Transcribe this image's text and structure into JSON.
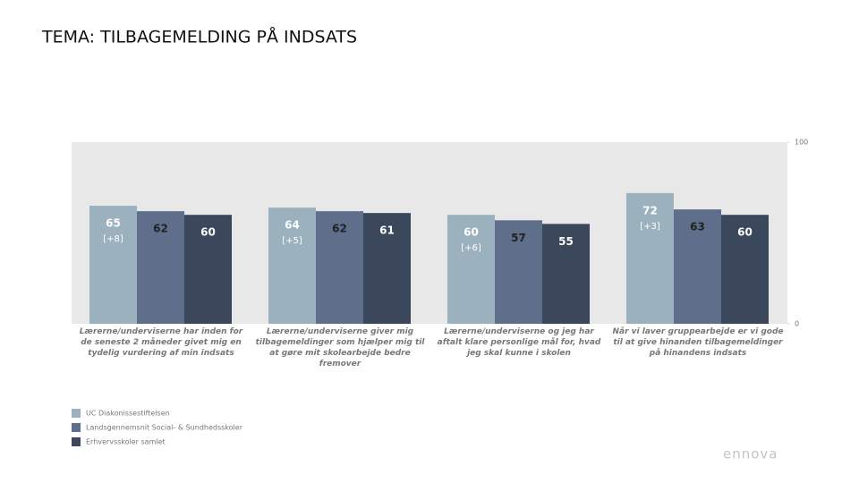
{
  "chart_data": {
    "type": "bar",
    "title": "TEMA: TILBAGEMELDING PÅ INDSATS",
    "categories": [
      "Lærerne/underviserne har inden for de seneste 2 måneder givet mig en tydelig vurdering af min indsats",
      "Lærerne/underviserne giver mig tilbagemeldinger som hjælper mig til at gøre mit skolearbejde bedre fremover",
      "Lærerne/underviserne og jeg har aftalt klare personlige mål for, hvad jeg skal kunne i skolen",
      "Når vi laver gruppearbejde er vi gode til at give hinanden tilbagemeldinger på hinandens indsats"
    ],
    "series": [
      {
        "name": "UC Diakonissestiftelsen",
        "color": "#9bb1bd",
        "values": [
          65,
          64,
          60,
          72
        ],
        "change_labels": [
          "[+8]",
          "[+5]",
          "[+6]",
          "[+3]"
        ]
      },
      {
        "name": "Landsgennemsnit Social- & Sundhedsskoler",
        "color": "#5f6e8a",
        "values": [
          62,
          62,
          57,
          63
        ]
      },
      {
        "name": "Erhvervsskoler samlet",
        "color": "#3b475b",
        "values": [
          60,
          61,
          55,
          60
        ]
      }
    ],
    "ylim": [
      0,
      100
    ],
    "yticks": [
      0,
      100
    ],
    "logo": "ennova"
  }
}
